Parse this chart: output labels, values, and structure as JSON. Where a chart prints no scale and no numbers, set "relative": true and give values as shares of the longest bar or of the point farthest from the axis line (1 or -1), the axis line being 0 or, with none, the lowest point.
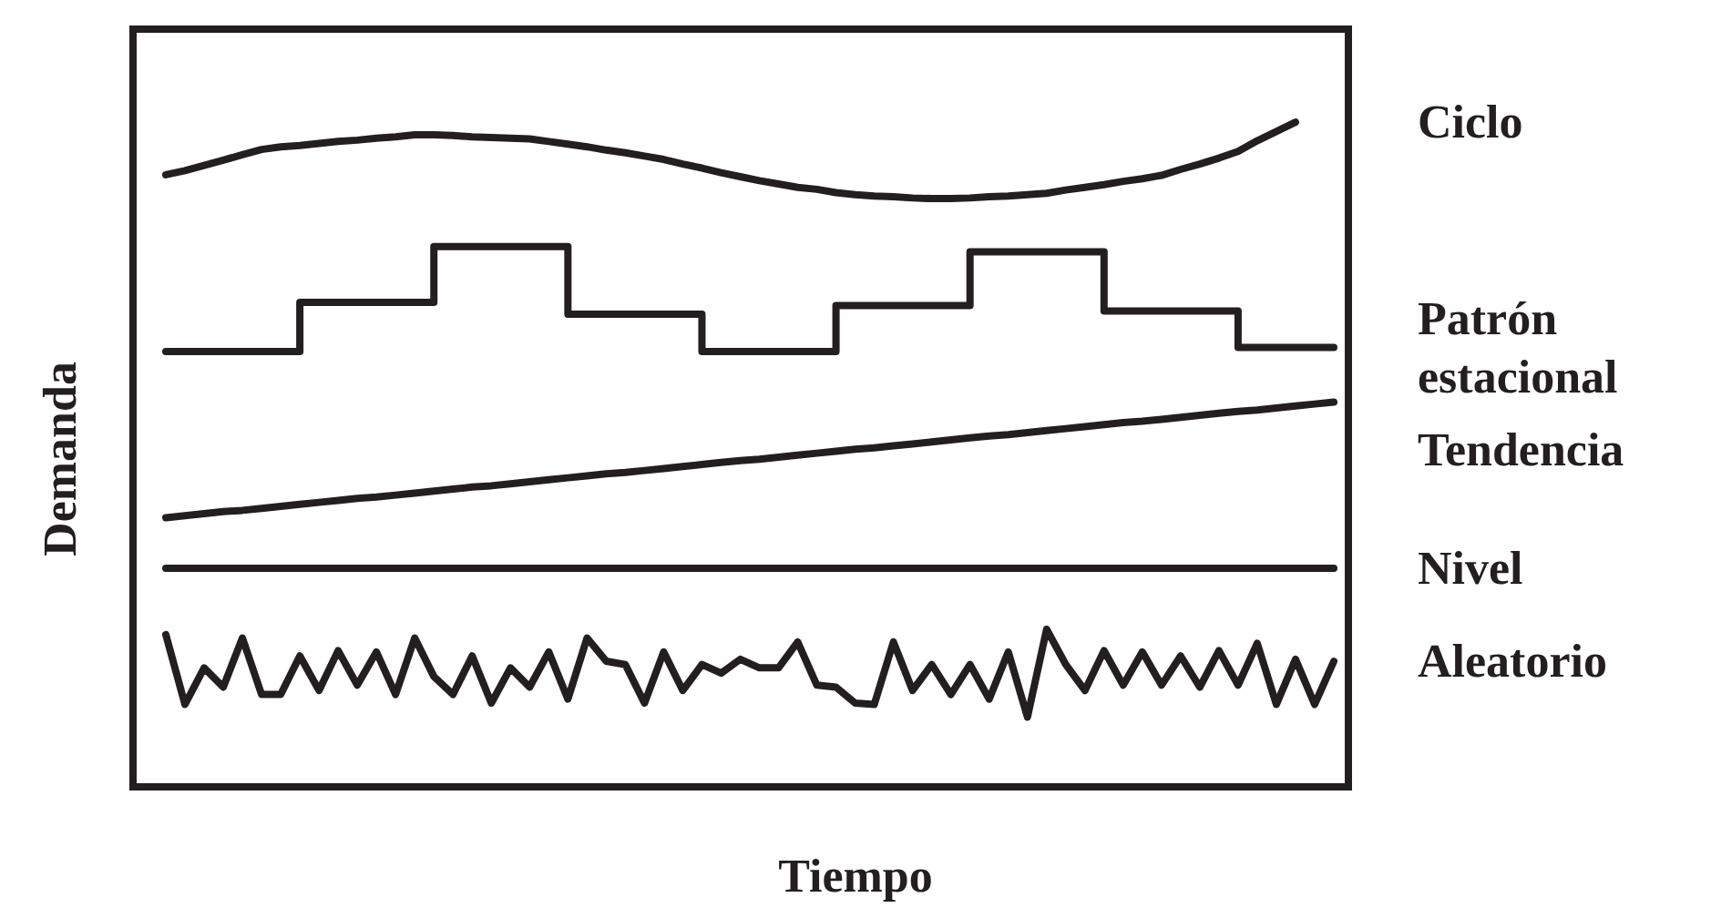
{
  "chart_data": {
    "type": "line",
    "xlabel": "Tiempo",
    "ylabel": "Demanda",
    "relative": true,
    "tick_labels": false,
    "grid": false,
    "legend": false,
    "marker": "none",
    "line_style": "solid",
    "categories": [
      null,
      null,
      null,
      null,
      null,
      null,
      null,
      null,
      null,
      null,
      null,
      null,
      null,
      null,
      null,
      null,
      null,
      null,
      null,
      null,
      null,
      null,
      null,
      null,
      null,
      null,
      null,
      null,
      null,
      null,
      null,
      null,
      null,
      null,
      null,
      null,
      null,
      null,
      null,
      null,
      null,
      null,
      null,
      null,
      null,
      null,
      null,
      null,
      null,
      null,
      null,
      null,
      null,
      null,
      null,
      null,
      null,
      null,
      null,
      null,
      null,
      null
    ],
    "series": [
      {
        "name": "Ciclo",
        "color": "#231f20",
        "values": [
          0.921,
          0.927,
          0.935,
          0.943,
          0.951,
          0.959,
          0.963,
          0.965,
          0.968,
          0.971,
          0.973,
          0.976,
          0.978,
          0.981,
          0.981,
          0.98,
          0.978,
          0.977,
          0.976,
          0.975,
          0.971,
          0.967,
          0.963,
          0.958,
          0.954,
          0.949,
          0.944,
          0.937,
          0.931,
          0.924,
          0.918,
          0.912,
          0.907,
          0.902,
          0.899,
          0.894,
          0.891,
          0.889,
          0.888,
          0.886,
          0.885,
          0.885,
          0.886,
          0.888,
          0.889,
          0.891,
          0.893,
          0.898,
          0.902,
          0.906,
          0.911,
          0.915,
          0.92,
          0.929,
          0.937,
          0.946,
          0.956,
          0.972,
          0.986,
          1.0,
          null,
          null
        ]
      },
      {
        "name": "Patrón estacional",
        "type": "step",
        "color": "#231f20",
        "values": [
          0.655,
          0.655,
          0.655,
          0.655,
          0.655,
          0.655,
          0.655,
          0.729,
          0.729,
          0.729,
          0.729,
          0.729,
          0.729,
          0.729,
          0.813,
          0.813,
          0.813,
          0.813,
          0.813,
          0.813,
          0.813,
          0.711,
          0.711,
          0.711,
          0.711,
          0.711,
          0.711,
          0.711,
          0.655,
          0.655,
          0.655,
          0.655,
          0.655,
          0.655,
          0.655,
          0.724,
          0.724,
          0.724,
          0.724,
          0.724,
          0.724,
          0.724,
          0.805,
          0.805,
          0.805,
          0.805,
          0.805,
          0.805,
          0.805,
          0.716,
          0.716,
          0.716,
          0.716,
          0.716,
          0.716,
          0.716,
          0.661,
          0.661,
          0.661,
          0.661,
          0.661,
          0.661
        ]
      },
      {
        "name": "Tendencia",
        "color": "#231f20",
        "values": [
          0.405,
          0.408,
          0.411,
          0.414,
          0.416,
          0.419,
          0.422,
          0.425,
          0.428,
          0.431,
          0.434,
          0.436,
          0.439,
          0.442,
          0.445,
          0.448,
          0.451,
          0.453,
          0.456,
          0.459,
          0.462,
          0.465,
          0.468,
          0.471,
          0.473,
          0.476,
          0.479,
          0.482,
          0.485,
          0.488,
          0.491,
          0.493,
          0.496,
          0.499,
          0.502,
          0.505,
          0.508,
          0.51,
          0.513,
          0.516,
          0.519,
          0.522,
          0.525,
          0.528,
          0.53,
          0.533,
          0.536,
          0.539,
          0.542,
          0.545,
          0.548,
          0.55,
          0.553,
          0.556,
          0.559,
          0.562,
          0.565,
          0.567,
          0.57,
          0.573,
          0.576,
          0.579
        ]
      },
      {
        "name": "Nivel",
        "color": "#231f20",
        "values": [
          0.329,
          0.329,
          0.329,
          0.329,
          0.329,
          0.329,
          0.329,
          0.329,
          0.329,
          0.329,
          0.329,
          0.329,
          0.329,
          0.329,
          0.329,
          0.329,
          0.329,
          0.329,
          0.329,
          0.329,
          0.329,
          0.329,
          0.329,
          0.329,
          0.329,
          0.329,
          0.329,
          0.329,
          0.329,
          0.329,
          0.329,
          0.329,
          0.329,
          0.329,
          0.329,
          0.329,
          0.329,
          0.329,
          0.329,
          0.329,
          0.329,
          0.329,
          0.329,
          0.329,
          0.329,
          0.329,
          0.329,
          0.329,
          0.329,
          0.329,
          0.329,
          0.329,
          0.329,
          0.329,
          0.329,
          0.329,
          0.329,
          0.329,
          0.329,
          0.329,
          0.329,
          0.329
        ]
      },
      {
        "name": "Aleatorio",
        "color": "#231f20",
        "values": [
          0.229,
          0.124,
          0.179,
          0.15,
          0.224,
          0.139,
          0.139,
          0.197,
          0.145,
          0.205,
          0.153,
          0.203,
          0.139,
          0.224,
          0.166,
          0.139,
          0.197,
          0.126,
          0.179,
          0.15,
          0.203,
          0.132,
          0.224,
          0.189,
          0.184,
          0.126,
          0.203,
          0.145,
          0.184,
          0.171,
          0.192,
          0.179,
          0.179,
          0.218,
          0.153,
          0.15,
          0.126,
          0.124,
          0.218,
          0.145,
          0.184,
          0.139,
          0.184,
          0.132,
          0.203,
          0.105,
          0.237,
          0.184,
          0.145,
          0.205,
          0.153,
          0.203,
          0.153,
          0.197,
          0.15,
          0.205,
          0.153,
          0.216,
          0.124,
          0.192,
          0.124,
          0.189
        ]
      }
    ]
  }
}
